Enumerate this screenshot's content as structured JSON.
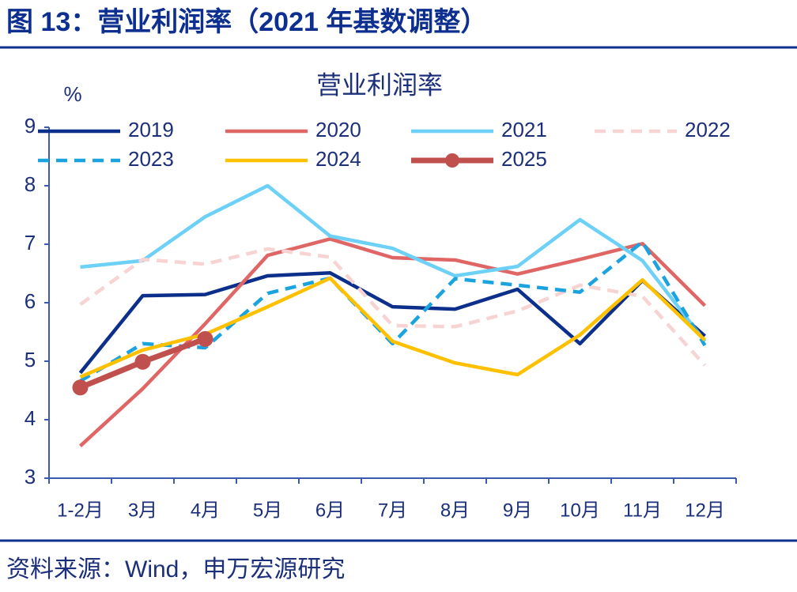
{
  "header": {
    "title": "图 13：营业利润率（2021 年基数调整）"
  },
  "footer": {
    "source": "资料来源：Wind，申万宏源研究"
  },
  "chart_data": {
    "type": "line",
    "title": "营业利润率",
    "y_label": "%",
    "categories": [
      "1-2月",
      "3月",
      "4月",
      "5月",
      "6月",
      "7月",
      "8月",
      "9月",
      "10月",
      "11月",
      "12月"
    ],
    "ylim": [
      3,
      9
    ],
    "yticks": [
      3,
      4,
      5,
      6,
      7,
      8,
      9
    ],
    "series": [
      {
        "name": "2019",
        "color": "#0b2f8a",
        "values": [
          4.8,
          6.12,
          6.14,
          6.46,
          6.51,
          5.93,
          5.89,
          6.23,
          5.3,
          6.38,
          5.43
        ]
      },
      {
        "name": "2020",
        "color": "#e06666",
        "values": [
          3.55,
          4.53,
          5.64,
          6.81,
          7.09,
          6.77,
          6.73,
          6.49,
          6.74,
          7.01,
          5.95
        ]
      },
      {
        "name": "2021",
        "color": "#6cd0f7",
        "values": [
          6.61,
          6.72,
          7.47,
          8.0,
          7.14,
          6.93,
          6.46,
          6.62,
          7.42,
          6.72,
          5.34
        ]
      },
      {
        "name": "2022",
        "color": "#f7d3d3",
        "dashed": true,
        "values": [
          5.97,
          6.74,
          6.66,
          6.92,
          6.78,
          5.61,
          5.59,
          5.86,
          6.3,
          6.11,
          4.93
        ]
      },
      {
        "name": "2023",
        "color": "#1ba3e0",
        "dashed": true,
        "values": [
          4.66,
          5.3,
          5.23,
          6.16,
          6.42,
          5.3,
          6.41,
          6.3,
          6.18,
          7.04,
          5.27
        ]
      },
      {
        "name": "2024",
        "color": "#ffc000",
        "values": [
          4.73,
          5.19,
          5.46,
          5.93,
          6.42,
          5.34,
          4.97,
          4.77,
          5.45,
          6.39,
          5.36
        ]
      },
      {
        "name": "2025",
        "color": "#c0504d",
        "markers": true,
        "values": [
          4.55,
          4.99,
          5.38,
          null,
          null,
          null,
          null,
          null,
          null,
          null,
          null
        ]
      }
    ]
  }
}
